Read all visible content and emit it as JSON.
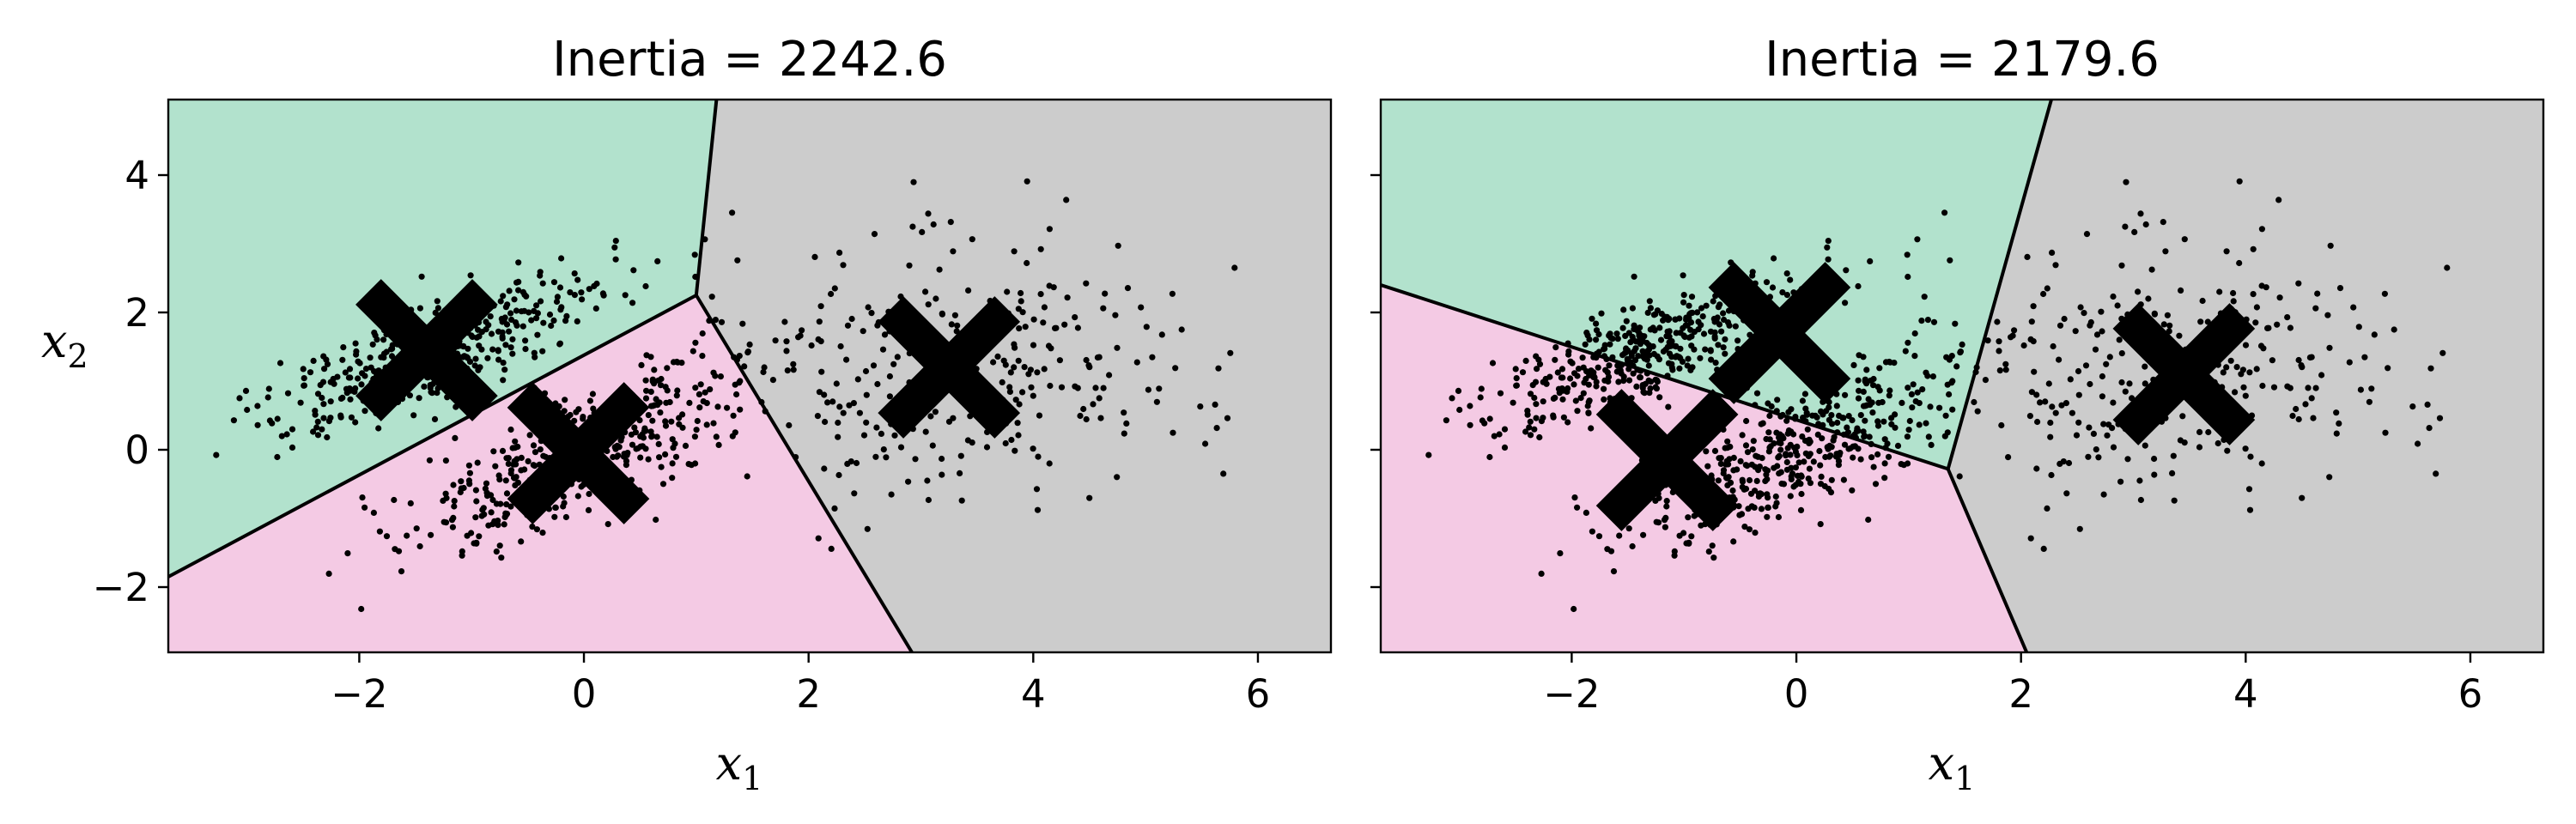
{
  "chart_data": [
    {
      "type": "scatter",
      "title": "Inertia = 2242.6",
      "xlabel": "x",
      "xlabel_sub": "1",
      "ylabel": "x",
      "ylabel_sub": "2",
      "xlim": [
        -3.7,
        6.65
      ],
      "ylim": [
        -2.95,
        5.1
      ],
      "xticks": [
        -2,
        0,
        2,
        4,
        6
      ],
      "xtick_labels": [
        "−2",
        "0",
        "2",
        "4",
        "6"
      ],
      "yticks": [
        -2,
        0,
        2,
        4
      ],
      "ytick_labels": [
        "−2",
        "0",
        "2",
        "4"
      ],
      "grid": false,
      "regions": [
        {
          "name": "green",
          "color": "#b2e2cd",
          "polygon": [
            [
              -3.7,
              5.1
            ],
            [
              1.18,
              5.1
            ],
            [
              1.0,
              2.25
            ],
            [
              -3.7,
              -1.85
            ]
          ]
        },
        {
          "name": "pink",
          "color": "#f4cae4",
          "polygon": [
            [
              -3.7,
              -1.85
            ],
            [
              1.0,
              2.25
            ],
            [
              2.92,
              -2.95
            ],
            [
              -3.7,
              -2.95
            ]
          ]
        },
        {
          "name": "gray",
          "color": "#cccccc",
          "polygon": [
            [
              1.18,
              5.1
            ],
            [
              6.65,
              5.1
            ],
            [
              6.65,
              -2.95
            ],
            [
              2.92,
              -2.95
            ],
            [
              1.0,
              2.25
            ]
          ]
        }
      ],
      "boundaries": [
        [
          [
            -3.7,
            -1.85
          ],
          [
            1.0,
            2.25
          ]
        ],
        [
          [
            1.18,
            5.1
          ],
          [
            1.0,
            2.25
          ]
        ],
        [
          [
            1.0,
            2.25
          ],
          [
            2.92,
            -2.95
          ]
        ]
      ],
      "centroids": [
        {
          "x": -1.4,
          "y": 1.45
        },
        {
          "x": -0.05,
          "y": -0.05
        },
        {
          "x": 3.25,
          "y": 1.2
        }
      ],
      "point_clusters": [
        {
          "cx": -1.3,
          "cy": 1.45,
          "sx": 0.75,
          "sy": 0.6,
          "rho": 0.75,
          "n": 420
        },
        {
          "cx": -0.1,
          "cy": -0.1,
          "sx": 0.8,
          "sy": 0.75,
          "rho": 0.8,
          "n": 430
        },
        {
          "cx": 3.3,
          "cy": 1.15,
          "sx": 1.05,
          "sy": 0.95,
          "rho": 0.1,
          "n": 300
        }
      ]
    },
    {
      "type": "scatter",
      "title": "Inertia = 2179.6",
      "xlabel": "x",
      "xlabel_sub": "1",
      "ylabel": "",
      "ylabel_sub": "",
      "xlim": [
        -3.7,
        6.65
      ],
      "ylim": [
        -2.95,
        5.1
      ],
      "xticks": [
        -2,
        0,
        2,
        4,
        6
      ],
      "xtick_labels": [
        "−2",
        "0",
        "2",
        "4",
        "6"
      ],
      "yticks": [
        -2,
        0,
        2,
        4
      ],
      "ytick_labels": [
        "",
        "",
        "",
        ""
      ],
      "grid": false,
      "regions": [
        {
          "name": "green",
          "color": "#b2e2cd",
          "polygon": [
            [
              -3.7,
              5.1
            ],
            [
              2.27,
              5.1
            ],
            [
              1.35,
              -0.28
            ],
            [
              -3.7,
              2.4
            ]
          ]
        },
        {
          "name": "pink",
          "color": "#f4cae4",
          "polygon": [
            [
              -3.7,
              2.4
            ],
            [
              1.35,
              -0.28
            ],
            [
              2.05,
              -2.95
            ],
            [
              -3.7,
              -2.95
            ]
          ]
        },
        {
          "name": "gray",
          "color": "#cccccc",
          "polygon": [
            [
              2.27,
              5.1
            ],
            [
              6.65,
              5.1
            ],
            [
              6.65,
              -2.95
            ],
            [
              2.05,
              -2.95
            ],
            [
              1.35,
              -0.28
            ]
          ]
        }
      ],
      "boundaries": [
        [
          [
            -3.7,
            2.4
          ],
          [
            1.35,
            -0.28
          ]
        ],
        [
          [
            2.27,
            5.1
          ],
          [
            1.35,
            -0.28
          ]
        ],
        [
          [
            1.35,
            -0.28
          ],
          [
            2.05,
            -2.95
          ]
        ]
      ],
      "centroids": [
        {
          "x": -0.15,
          "y": 1.7
        },
        {
          "x": -1.15,
          "y": -0.15
        },
        {
          "x": 3.45,
          "y": 1.1
        }
      ],
      "point_clusters": [
        {
          "cx": -1.3,
          "cy": 1.45,
          "sx": 0.75,
          "sy": 0.6,
          "rho": 0.75,
          "n": 420
        },
        {
          "cx": -0.1,
          "cy": -0.1,
          "sx": 0.8,
          "sy": 0.75,
          "rho": 0.8,
          "n": 430
        },
        {
          "cx": 3.3,
          "cy": 1.15,
          "sx": 1.05,
          "sy": 0.95,
          "rho": 0.1,
          "n": 300
        }
      ]
    }
  ]
}
